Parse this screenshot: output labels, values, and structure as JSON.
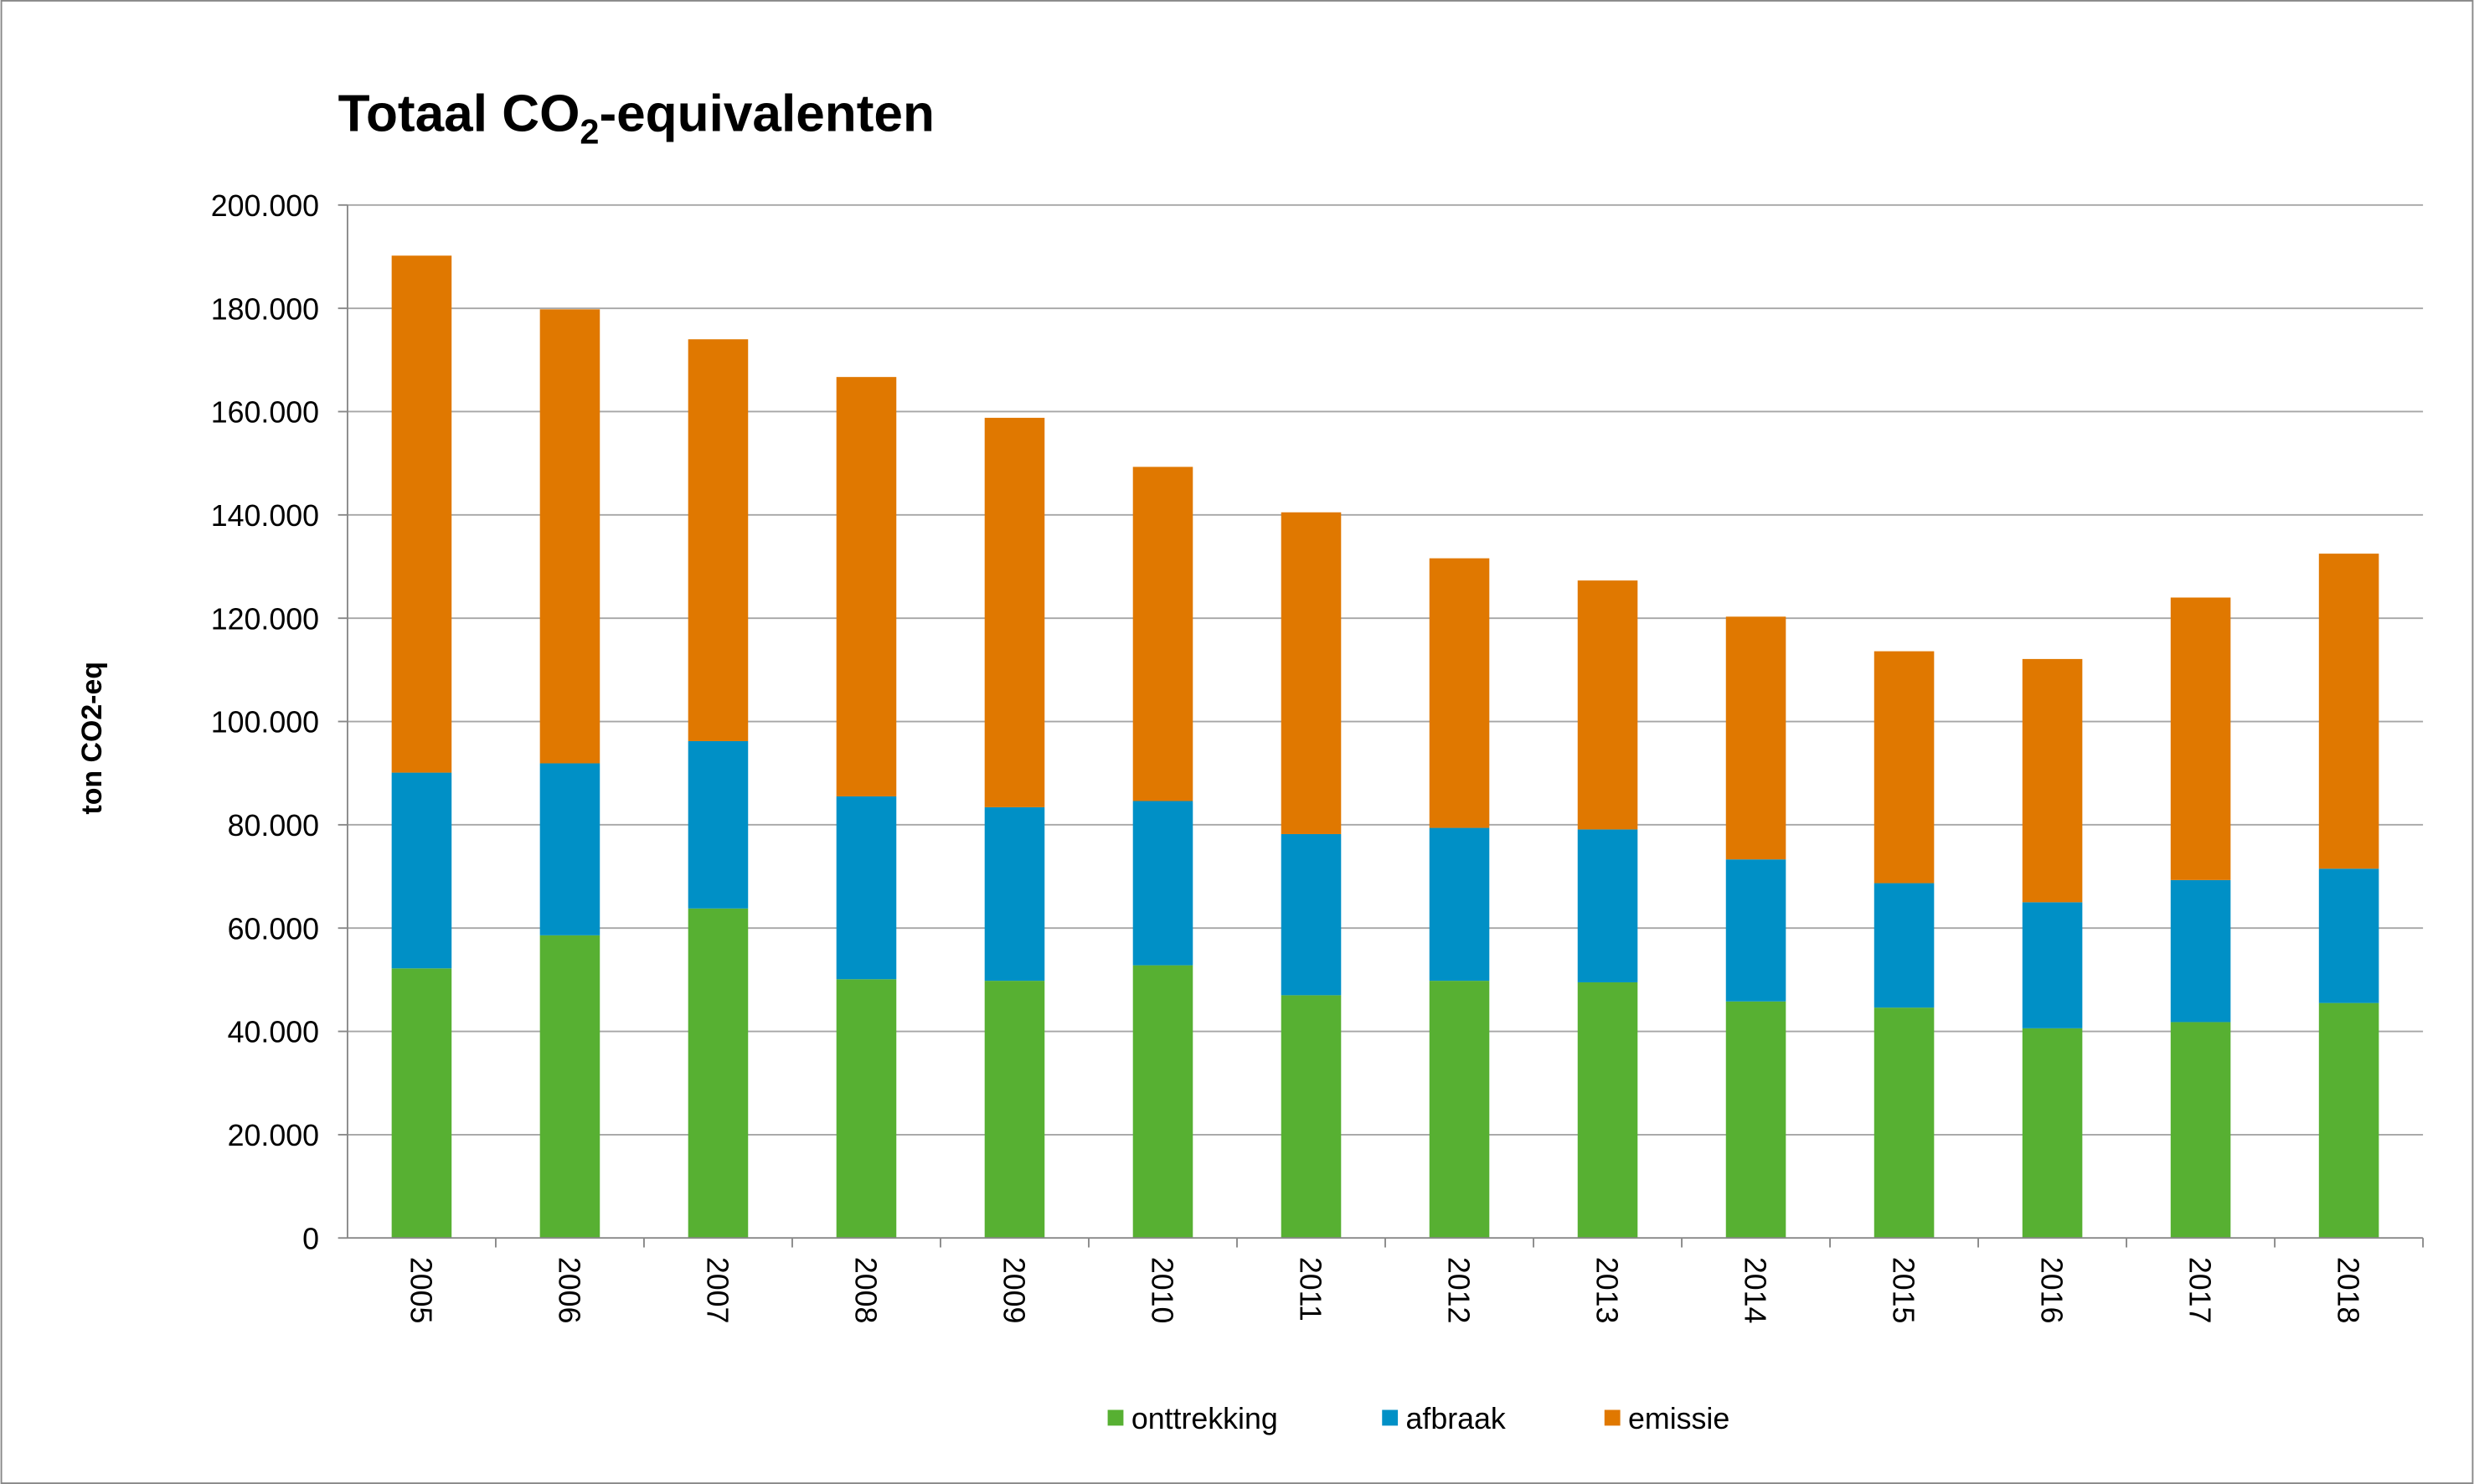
{
  "chart_data": {
    "type": "bar",
    "stacked": true,
    "title": {
      "main": "Totaal CO",
      "subscript": "2",
      "rest": "-equivalenten"
    },
    "xlabel": "",
    "ylabel": "ton CO2-eq",
    "ylim": [
      0,
      200000
    ],
    "yticks": [
      0,
      20000,
      40000,
      60000,
      80000,
      100000,
      120000,
      140000,
      160000,
      180000,
      200000
    ],
    "ytick_labels": [
      "0",
      "20.000",
      "40.000",
      "60.000",
      "80.000",
      "100.000",
      "120.000",
      "140.000",
      "160.000",
      "180.000",
      "200.000"
    ],
    "grid": true,
    "legend_position": "bottom",
    "categories": [
      "2005",
      "2006",
      "2007",
      "2008",
      "2009",
      "2010",
      "2011",
      "2012",
      "2013",
      "2014",
      "2015",
      "2016",
      "2017",
      "2018"
    ],
    "series": [
      {
        "name": "onttrekking",
        "color": "#57b032",
        "values": [
          52200,
          58600,
          63800,
          50100,
          49800,
          52800,
          47000,
          49800,
          49500,
          45800,
          44600,
          40600,
          41800,
          45500
        ]
      },
      {
        "name": "afbraak",
        "color": "#0090c6",
        "values": [
          37900,
          33300,
          32400,
          35400,
          33600,
          31800,
          31200,
          29600,
          29600,
          27500,
          24100,
          24400,
          27500,
          26000
        ]
      },
      {
        "name": "emissie",
        "color": "#e07800",
        "values": [
          100100,
          87900,
          77800,
          81200,
          75400,
          64700,
          62300,
          52200,
          48200,
          47000,
          44900,
          47100,
          54700,
          61000
        ]
      }
    ]
  }
}
